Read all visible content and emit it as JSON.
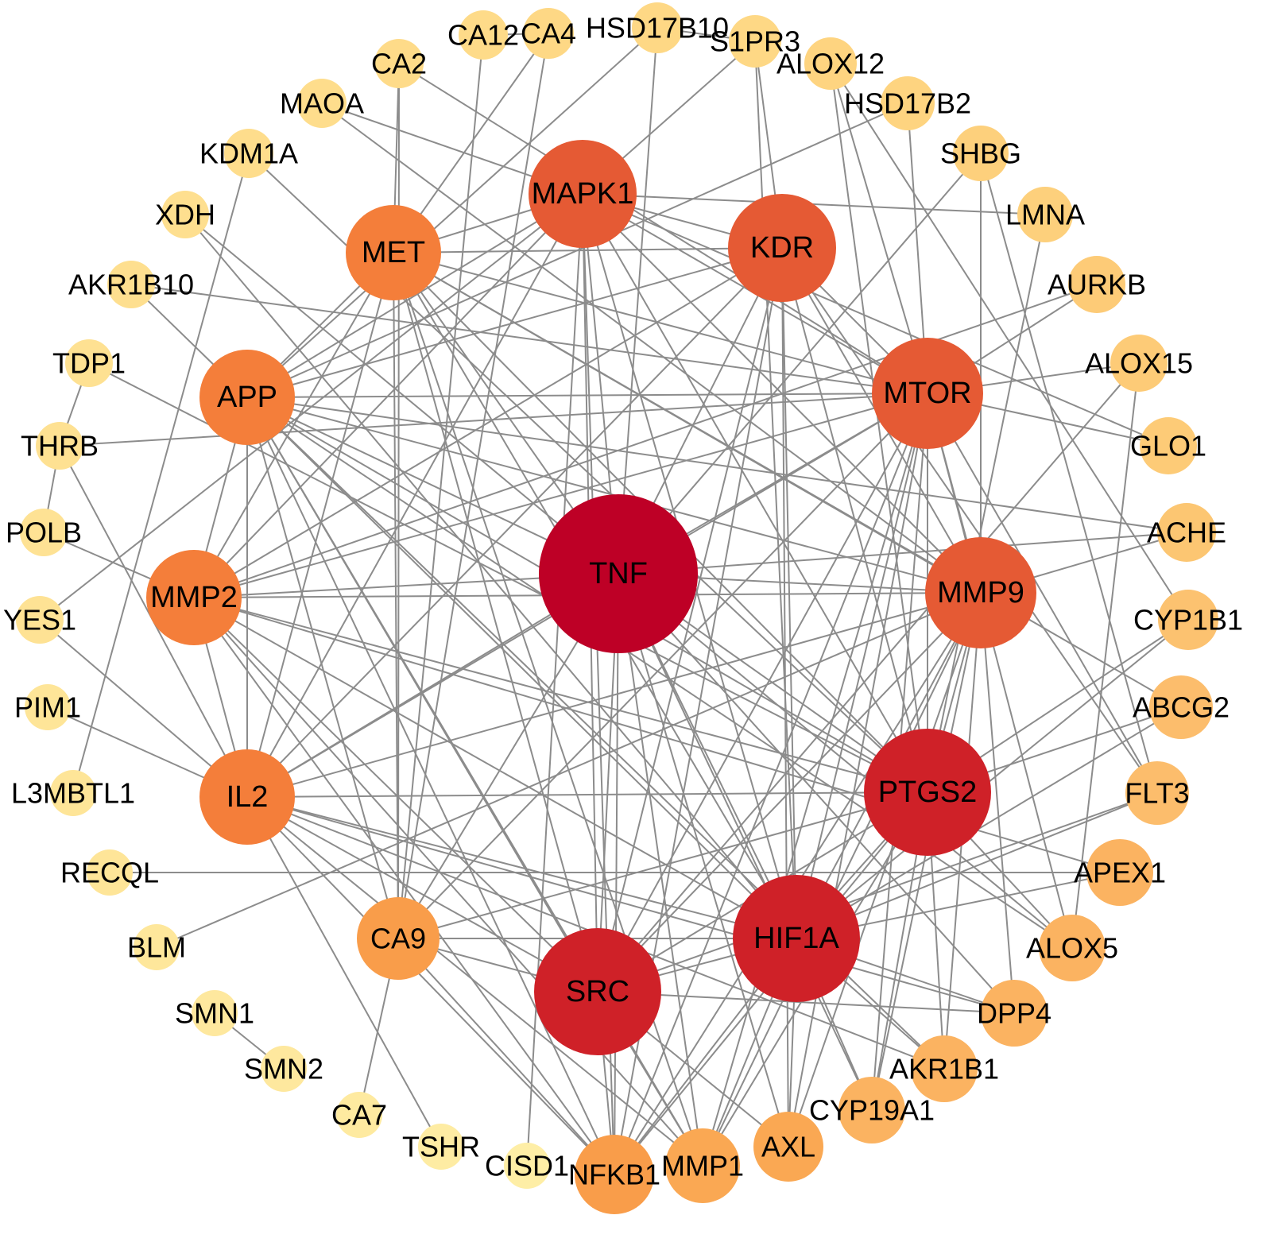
{
  "diagram": {
    "type": "network",
    "edge_color": "#8c8c8c",
    "nodes": [
      {
        "id": "TNF",
        "color": "#be0026"
      },
      {
        "id": "SRC",
        "color": "#cf2128"
      },
      {
        "id": "HIF1A",
        "color": "#cf2128"
      },
      {
        "id": "PTGS2",
        "color": "#cf2128"
      },
      {
        "id": "MTOR",
        "color": "#e55a34"
      },
      {
        "id": "MMP9",
        "color": "#e55a34"
      },
      {
        "id": "KDR",
        "color": "#e55a34"
      },
      {
        "id": "MAPK1",
        "color": "#e55a34"
      },
      {
        "id": "MET",
        "color": "#f47e3a"
      },
      {
        "id": "APP",
        "color": "#f47e3a"
      },
      {
        "id": "MMP2",
        "color": "#f47e3a"
      },
      {
        "id": "IL2",
        "color": "#f47e3a"
      },
      {
        "id": "CA9",
        "color": "#f99d4a"
      },
      {
        "id": "NFKB1",
        "color": "#f99d4a"
      },
      {
        "id": "MMP1",
        "color": "#faa853"
      },
      {
        "id": "AXL",
        "color": "#faa853"
      },
      {
        "id": "CYP19A1",
        "color": "#fbb361"
      },
      {
        "id": "AKR1B1",
        "color": "#fbb361"
      },
      {
        "id": "DPP4",
        "color": "#fbb361"
      },
      {
        "id": "ALOX5",
        "color": "#fbb361"
      },
      {
        "id": "APEX1",
        "color": "#fbb361"
      },
      {
        "id": "FLT3",
        "color": "#fcbd6c"
      },
      {
        "id": "ABCG2",
        "color": "#fcbd6c"
      },
      {
        "id": "CYP1B1",
        "color": "#fcc270"
      },
      {
        "id": "ACHE",
        "color": "#fcc672"
      },
      {
        "id": "GLO1",
        "color": "#fdcb77"
      },
      {
        "id": "ALOX15",
        "color": "#fdcb77"
      },
      {
        "id": "AURKB",
        "color": "#fdcb77"
      },
      {
        "id": "LMNA",
        "color": "#fdd07c"
      },
      {
        "id": "SHBG",
        "color": "#fdd07c"
      },
      {
        "id": "HSD17B2",
        "color": "#fed480"
      },
      {
        "id": "ALOX12",
        "color": "#fed480"
      },
      {
        "id": "S1PR3",
        "color": "#fed885"
      },
      {
        "id": "HSD17B10",
        "color": "#fed885"
      },
      {
        "id": "CA4",
        "color": "#fed885"
      },
      {
        "id": "CA12",
        "color": "#fedb89"
      },
      {
        "id": "CA2",
        "color": "#fedb89"
      },
      {
        "id": "MAOA",
        "color": "#fedd8c"
      },
      {
        "id": "KDM1A",
        "color": "#fedd8c"
      },
      {
        "id": "XDH",
        "color": "#fedf8f"
      },
      {
        "id": "AKR1B10",
        "color": "#fedf8f"
      },
      {
        "id": "TDP1",
        "color": "#fee192"
      },
      {
        "id": "THRB",
        "color": "#fee192"
      },
      {
        "id": "POLB",
        "color": "#fee294"
      },
      {
        "id": "YES1",
        "color": "#fee294"
      },
      {
        "id": "PIM1",
        "color": "#fee598"
      },
      {
        "id": "L3MBTL1",
        "color": "#fee598"
      },
      {
        "id": "RECQL",
        "color": "#fee598"
      },
      {
        "id": "BLM",
        "color": "#fee79b"
      },
      {
        "id": "SMN1",
        "color": "#fee89e"
      },
      {
        "id": "SMN2",
        "color": "#fee89e"
      },
      {
        "id": "CA7",
        "color": "#feeaa0"
      },
      {
        "id": "TSHR",
        "color": "#feeca3"
      },
      {
        "id": "CISD1",
        "color": "#feeea6"
      }
    ],
    "edges": [
      [
        "TNF",
        "SRC"
      ],
      [
        "TNF",
        "HIF1A"
      ],
      [
        "TNF",
        "PTGS2"
      ],
      [
        "TNF",
        "MTOR"
      ],
      [
        "TNF",
        "MMP9"
      ],
      [
        "TNF",
        "KDR"
      ],
      [
        "TNF",
        "MAPK1"
      ],
      [
        "TNF",
        "MET"
      ],
      [
        "TNF",
        "APP"
      ],
      [
        "TNF",
        "MMP2"
      ],
      [
        "TNF",
        "IL2"
      ],
      [
        "SRC",
        "HIF1A"
      ],
      [
        "SRC",
        "PTGS2"
      ],
      [
        "SRC",
        "MTOR"
      ],
      [
        "SRC",
        "MMP9"
      ],
      [
        "SRC",
        "KDR"
      ],
      [
        "SRC",
        "MAPK1"
      ],
      [
        "SRC",
        "MET"
      ],
      [
        "SRC",
        "APP"
      ],
      [
        "SRC",
        "MMP2"
      ],
      [
        "SRC",
        "IL2"
      ],
      [
        "HIF1A",
        "PTGS2"
      ],
      [
        "HIF1A",
        "MTOR"
      ],
      [
        "HIF1A",
        "MMP9"
      ],
      [
        "HIF1A",
        "KDR"
      ],
      [
        "HIF1A",
        "MAPK1"
      ],
      [
        "HIF1A",
        "MET"
      ],
      [
        "HIF1A",
        "APP"
      ],
      [
        "HIF1A",
        "MMP2"
      ],
      [
        "HIF1A",
        "IL2"
      ],
      [
        "PTGS2",
        "MTOR"
      ],
      [
        "PTGS2",
        "MMP9"
      ],
      [
        "PTGS2",
        "KDR"
      ],
      [
        "PTGS2",
        "MAPK1"
      ],
      [
        "PTGS2",
        "MET"
      ],
      [
        "PTGS2",
        "APP"
      ],
      [
        "PTGS2",
        "MMP2"
      ],
      [
        "PTGS2",
        "IL2"
      ],
      [
        "MTOR",
        "MMP9"
      ],
      [
        "MTOR",
        "KDR"
      ],
      [
        "MTOR",
        "MAPK1"
      ],
      [
        "MTOR",
        "MET"
      ],
      [
        "MTOR",
        "APP"
      ],
      [
        "MTOR",
        "MMP2"
      ],
      [
        "MTOR",
        "IL2"
      ],
      [
        "MMP9",
        "KDR"
      ],
      [
        "MMP9",
        "MAPK1"
      ],
      [
        "MMP9",
        "MET"
      ],
      [
        "MMP9",
        "APP"
      ],
      [
        "MMP9",
        "MMP2"
      ],
      [
        "MMP9",
        "IL2"
      ],
      [
        "KDR",
        "MAPK1"
      ],
      [
        "KDR",
        "MET"
      ],
      [
        "KDR",
        "APP"
      ],
      [
        "KDR",
        "MMP2"
      ],
      [
        "KDR",
        "IL2"
      ],
      [
        "MAPK1",
        "MET"
      ],
      [
        "MAPK1",
        "APP"
      ],
      [
        "MAPK1",
        "MMP2"
      ],
      [
        "MAPK1",
        "IL2"
      ],
      [
        "MET",
        "APP"
      ],
      [
        "MET",
        "MMP2"
      ],
      [
        "MET",
        "IL2"
      ],
      [
        "APP",
        "MMP2"
      ],
      [
        "APP",
        "IL2"
      ],
      [
        "MMP2",
        "IL2"
      ],
      [
        "NFKB1",
        "TNF"
      ],
      [
        "NFKB1",
        "SRC"
      ],
      [
        "NFKB1",
        "HIF1A"
      ],
      [
        "NFKB1",
        "PTGS2"
      ],
      [
        "NFKB1",
        "MTOR"
      ],
      [
        "NFKB1",
        "MMP9"
      ],
      [
        "NFKB1",
        "KDR"
      ],
      [
        "NFKB1",
        "MAPK1"
      ],
      [
        "NFKB1",
        "APP"
      ],
      [
        "NFKB1",
        "MMP2"
      ],
      [
        "NFKB1",
        "IL2"
      ],
      [
        "NFKB1",
        "CA9"
      ],
      [
        "MMP1",
        "TNF"
      ],
      [
        "MMP1",
        "SRC"
      ],
      [
        "MMP1",
        "HIF1A"
      ],
      [
        "MMP1",
        "PTGS2"
      ],
      [
        "MMP1",
        "MMP9"
      ],
      [
        "MMP1",
        "MTOR"
      ],
      [
        "MMP1",
        "MMP2"
      ],
      [
        "MMP1",
        "IL2"
      ],
      [
        "MMP1",
        "APP"
      ],
      [
        "MMP1",
        "MET"
      ],
      [
        "AXL",
        "SRC"
      ],
      [
        "AXL",
        "HIF1A"
      ],
      [
        "AXL",
        "KDR"
      ],
      [
        "AXL",
        "MTOR"
      ],
      [
        "AXL",
        "MMP9"
      ],
      [
        "AXL",
        "TNF"
      ],
      [
        "CYP19A1",
        "MTOR"
      ],
      [
        "CYP19A1",
        "PTGS2"
      ],
      [
        "CYP19A1",
        "HIF1A"
      ],
      [
        "CYP19A1",
        "TNF"
      ],
      [
        "CYP19A1",
        "MMP9"
      ],
      [
        "AKR1B1",
        "HIF1A"
      ],
      [
        "AKR1B1",
        "APP"
      ],
      [
        "AKR1B1",
        "PTGS2"
      ],
      [
        "AKR1B1",
        "MMP9"
      ],
      [
        "AKR1B1",
        "IL2"
      ],
      [
        "DPP4",
        "SRC"
      ],
      [
        "DPP4",
        "HIF1A"
      ],
      [
        "DPP4",
        "TNF"
      ],
      [
        "DPP4",
        "MMP9"
      ],
      [
        "DPP4",
        "IL2"
      ],
      [
        "CA9",
        "MET"
      ],
      [
        "CA9",
        "HIF1A"
      ],
      [
        "CA9",
        "SRC"
      ],
      [
        "CA9",
        "TNF"
      ],
      [
        "CA9",
        "MTOR"
      ],
      [
        "CA9",
        "APP"
      ],
      [
        "CA9",
        "PTGS2"
      ],
      [
        "CA9",
        "CA12"
      ],
      [
        "CA9",
        "CA4"
      ],
      [
        "CA9",
        "CA2"
      ],
      [
        "CA9",
        "CA7"
      ],
      [
        "ALOX5",
        "PTGS2"
      ],
      [
        "ALOX5",
        "MTOR"
      ],
      [
        "ALOX5",
        "APP"
      ],
      [
        "ALOX5",
        "TNF"
      ],
      [
        "ALOX5",
        "ALOX15"
      ],
      [
        "APEX1",
        "RECQL"
      ],
      [
        "APEX1",
        "HIF1A"
      ],
      [
        "APEX1",
        "MMP2"
      ],
      [
        "FLT3",
        "SRC"
      ],
      [
        "FLT3",
        "KDR"
      ],
      [
        "FLT3",
        "MTOR"
      ],
      [
        "FLT3",
        "HIF1A"
      ],
      [
        "FLT3",
        "SHBG"
      ],
      [
        "ABCG2",
        "HIF1A"
      ],
      [
        "ABCG2",
        "MET"
      ],
      [
        "ABCG2",
        "PTGS2"
      ],
      [
        "CYP1B1",
        "PTGS2"
      ],
      [
        "CYP1B1",
        "HIF1A"
      ],
      [
        "CYP1B1",
        "ALOX12"
      ],
      [
        "ACHE",
        "APP"
      ],
      [
        "ACHE",
        "MMP9"
      ],
      [
        "ACHE",
        "TNF"
      ],
      [
        "GLO1",
        "MTOR"
      ],
      [
        "GLO1",
        "MAPK1"
      ],
      [
        "ALOX15",
        "MTOR"
      ],
      [
        "ALOX15",
        "SRC"
      ],
      [
        "AURKB",
        "MTOR"
      ],
      [
        "AURKB",
        "MMP2"
      ],
      [
        "LMNA",
        "MAPK1"
      ],
      [
        "LMNA",
        "PTGS2"
      ],
      [
        "SHBG",
        "TNF"
      ],
      [
        "SHBG",
        "MMP9"
      ],
      [
        "HSD17B2",
        "MTOR"
      ],
      [
        "HSD17B2",
        "APP"
      ],
      [
        "ALOX12",
        "MTOR"
      ],
      [
        "ALOX12",
        "PTGS2"
      ],
      [
        "S1PR3",
        "MAPK1"
      ],
      [
        "S1PR3",
        "KDR"
      ],
      [
        "S1PR3",
        "HIF1A"
      ],
      [
        "S1PR3",
        "HSD17B10"
      ],
      [
        "HSD17B10",
        "APP"
      ],
      [
        "HSD17B10",
        "TNF"
      ],
      [
        "CA4",
        "MET"
      ],
      [
        "CA12",
        "CA4"
      ],
      [
        "CA2",
        "MET"
      ],
      [
        "CA2",
        "MTOR"
      ],
      [
        "MAOA",
        "MAPK1"
      ],
      [
        "MAOA",
        "MMP9"
      ],
      [
        "KDM1A",
        "L3MBTL1"
      ],
      [
        "KDM1A",
        "PTGS2"
      ],
      [
        "XDH",
        "TNF"
      ],
      [
        "XDH",
        "HIF1A"
      ],
      [
        "AKR1B10",
        "APP"
      ],
      [
        "AKR1B10",
        "MTOR"
      ],
      [
        "TDP1",
        "THRB"
      ],
      [
        "TDP1",
        "PTGS2"
      ],
      [
        "THRB",
        "POLB"
      ],
      [
        "THRB",
        "IL2"
      ],
      [
        "THRB",
        "MTOR"
      ],
      [
        "POLB",
        "MMP2"
      ],
      [
        "YES1",
        "IL2"
      ],
      [
        "YES1",
        "MAPK1"
      ],
      [
        "PIM1",
        "IL2"
      ],
      [
        "BLM",
        "MMP9"
      ],
      [
        "SMN1",
        "SMN2"
      ],
      [
        "TSHR",
        "IL2"
      ],
      [
        "CISD1",
        "MAPK1"
      ]
    ]
  }
}
